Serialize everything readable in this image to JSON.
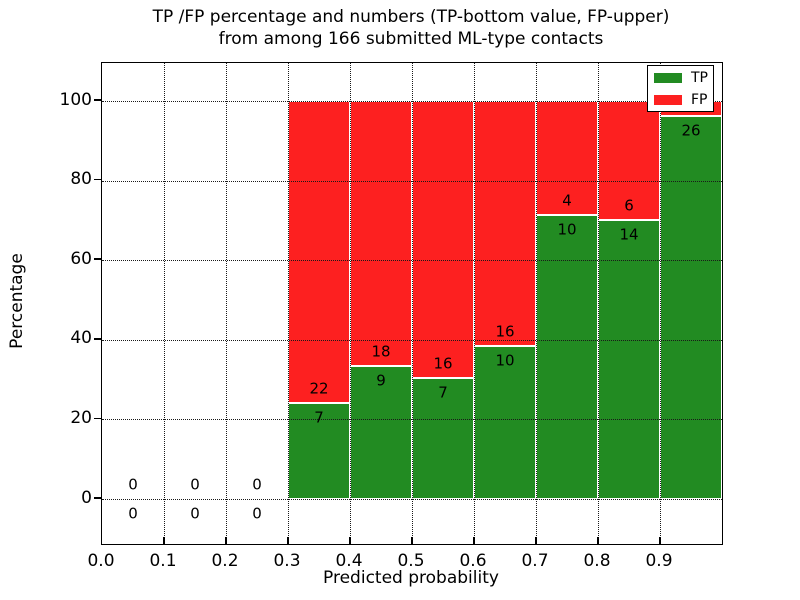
{
  "figure": {
    "title_line1": "TP /FP percentage and numbers (TP-bottom value, FP-upper)",
    "title_line2": "from among 166 submitted ML-type contacts",
    "xlabel": "Predicted probability",
    "ylabel": "Percentage"
  },
  "colors": {
    "tp_green": "#228b22",
    "fp_red": "#fd2020",
    "axis": "#000000",
    "background": "#ffffff"
  },
  "chart_data": {
    "type": "bar",
    "stacked": true,
    "normalized_to_percent": true,
    "title": "TP /FP percentage and numbers (TP-bottom value, FP-upper)\nfrom among 166 submitted ML-type contacts",
    "xlabel": "Predicted probability",
    "ylabel": "Percentage",
    "total_contacts": 166,
    "xlim": [
      0.0,
      1.0
    ],
    "ylim": [
      -11.3,
      109.5
    ],
    "x_ticks": [
      "0.0",
      "0.1",
      "0.2",
      "0.3",
      "0.4",
      "0.5",
      "0.6",
      "0.7",
      "0.8",
      "0.9"
    ],
    "y_ticks": [
      0,
      20,
      40,
      60,
      80,
      100
    ],
    "grid": "dotted, both axes, drawn over bars",
    "legend_position": "upper right",
    "series": [
      {
        "name": "TP",
        "color": "#228b22"
      },
      {
        "name": "FP",
        "color": "#fd2020"
      }
    ],
    "bins": [
      {
        "x0": 0.0,
        "x1": 0.1,
        "tp": 0,
        "fp": 0,
        "tp_pct": 0,
        "fp_pct": 0
      },
      {
        "x0": 0.1,
        "x1": 0.2,
        "tp": 0,
        "fp": 0,
        "tp_pct": 0,
        "fp_pct": 0
      },
      {
        "x0": 0.2,
        "x1": 0.3,
        "tp": 0,
        "fp": 0,
        "tp_pct": 0,
        "fp_pct": 0
      },
      {
        "x0": 0.3,
        "x1": 0.4,
        "tp": 7,
        "fp": 22,
        "tp_pct": 24.1,
        "fp_pct": 75.9
      },
      {
        "x0": 0.4,
        "x1": 0.5,
        "tp": 9,
        "fp": 18,
        "tp_pct": 33.3,
        "fp_pct": 66.7
      },
      {
        "x0": 0.5,
        "x1": 0.6,
        "tp": 7,
        "fp": 16,
        "tp_pct": 30.4,
        "fp_pct": 69.6
      },
      {
        "x0": 0.6,
        "x1": 0.7,
        "tp": 10,
        "fp": 16,
        "tp_pct": 38.5,
        "fp_pct": 61.5
      },
      {
        "x0": 0.7,
        "x1": 0.8,
        "tp": 10,
        "fp": 4,
        "tp_pct": 71.4,
        "fp_pct": 28.6
      },
      {
        "x0": 0.8,
        "x1": 0.9,
        "tp": 14,
        "fp": 6,
        "tp_pct": 70.0,
        "fp_pct": 30.0
      },
      {
        "x0": 0.9,
        "x1": 1.0,
        "tp": 26,
        "fp": 1,
        "tp_pct": 96.3,
        "fp_pct": 3.7,
        "fp_label_hidden_by_legend": true
      }
    ]
  }
}
